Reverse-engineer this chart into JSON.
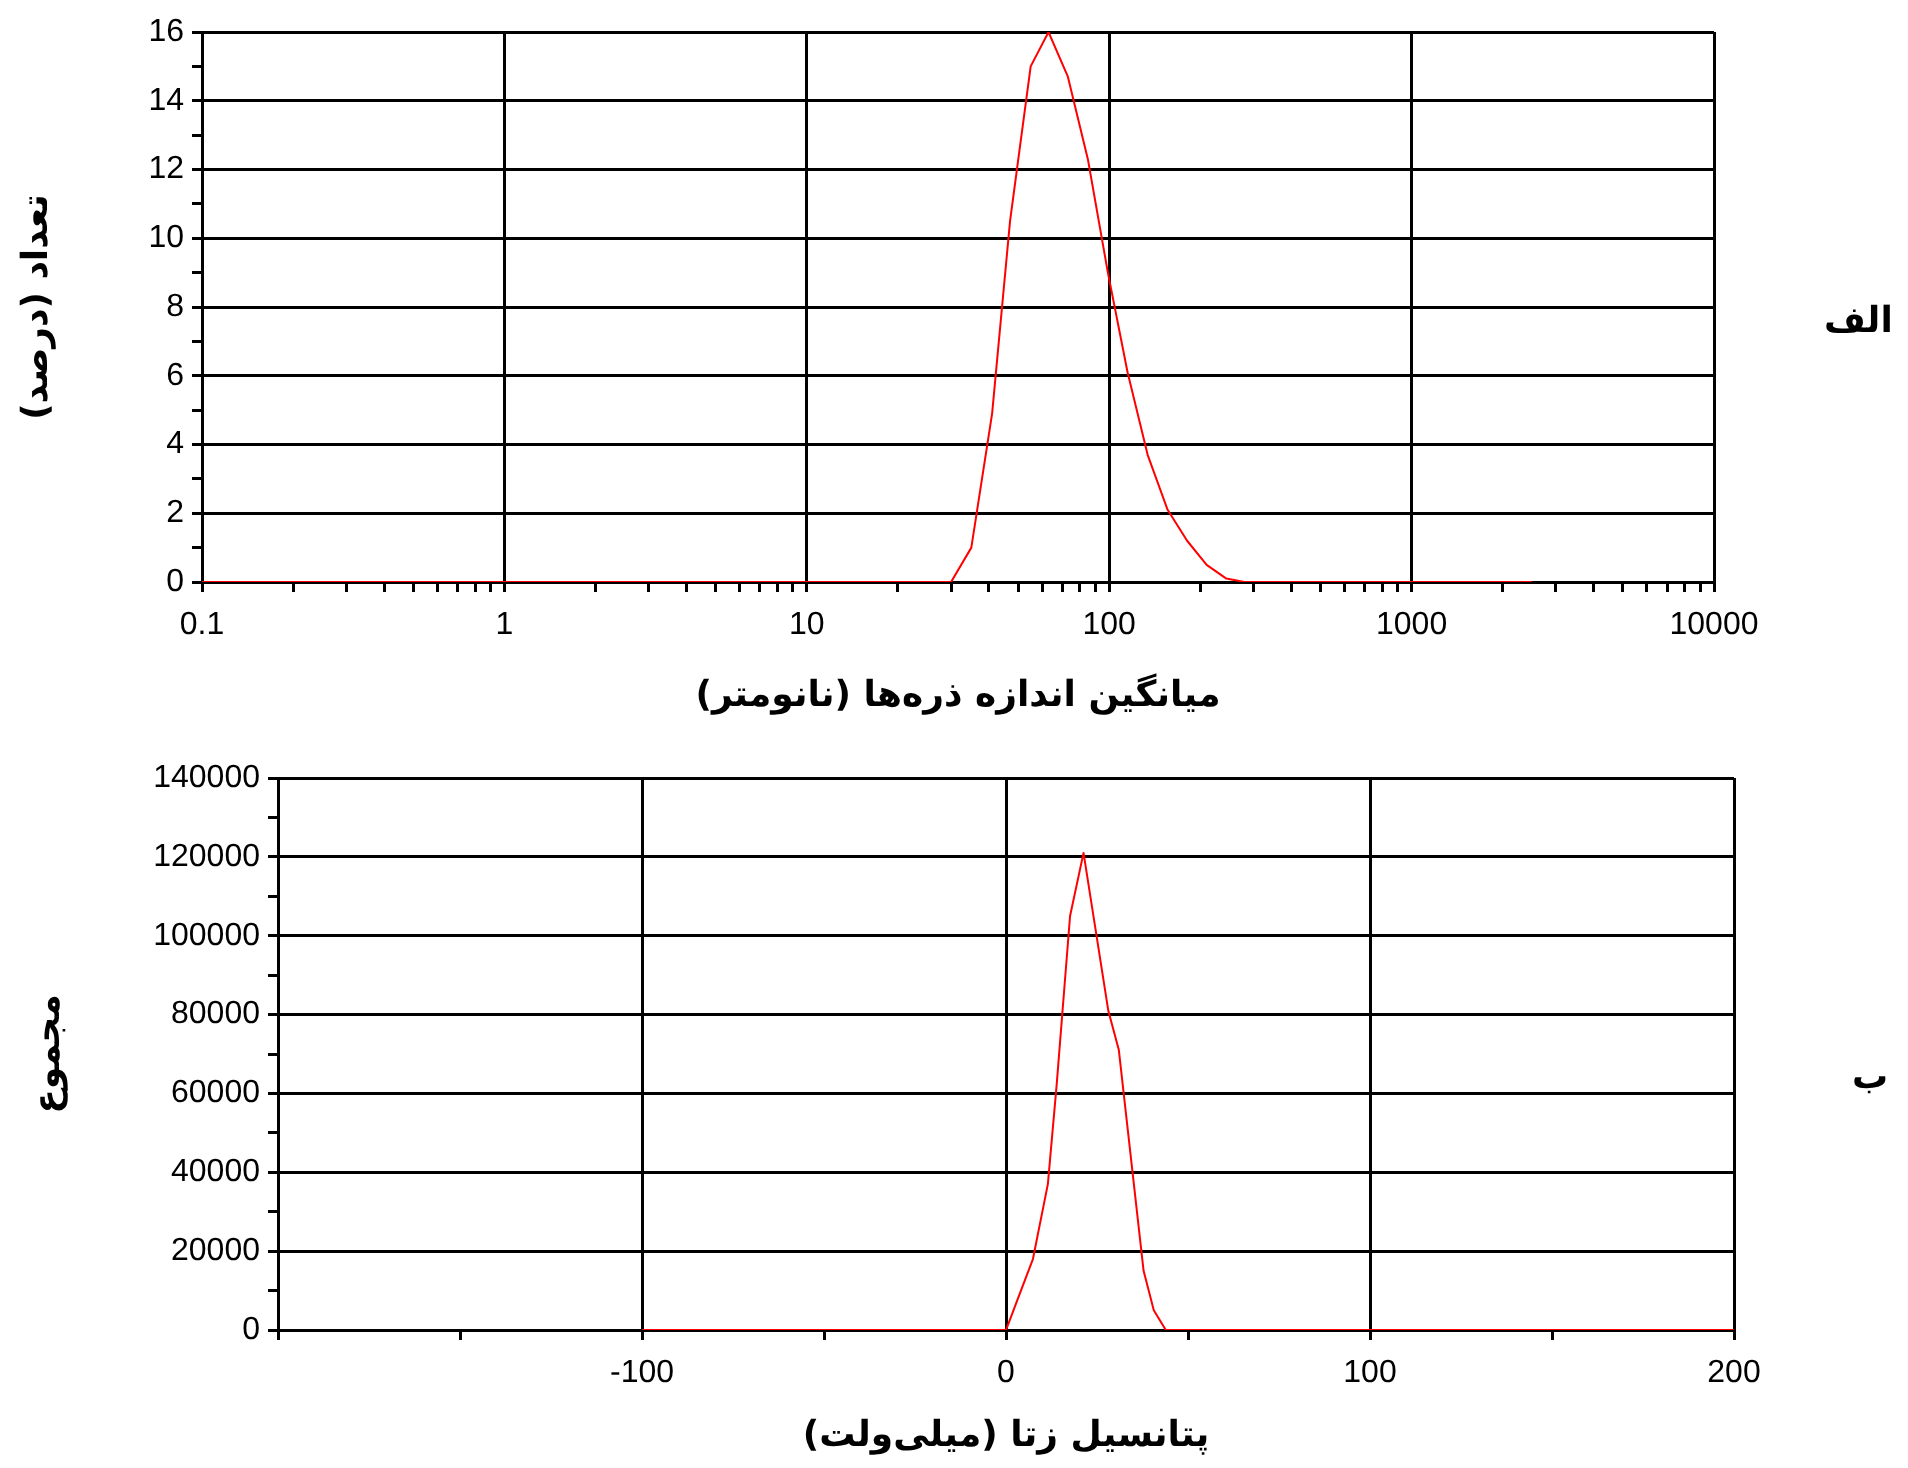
{
  "chart_data": [
    {
      "type": "line",
      "xlabel": "میانگین اندازه ذره‌ها (نانومتر)",
      "ylabel": "تعداد (درصد)",
      "annotations": [
        "الف"
      ],
      "log": "x",
      "x": [
        0.1,
        30,
        35,
        41,
        47,
        55,
        63,
        73,
        85,
        99,
        115,
        134,
        156,
        181,
        210,
        244,
        280,
        2500
      ],
      "values": [
        0,
        0,
        1,
        4.9,
        10.5,
        15,
        16,
        14.7,
        12.3,
        9,
        6.1,
        3.7,
        2.1,
        1.2,
        0.5,
        0.1,
        0,
        0
      ],
      "color": "#ff0000",
      "marker": "none",
      "xlim": [
        0.1,
        10000
      ],
      "ylim": [
        0,
        16
      ],
      "xticks": [
        0.1,
        {
          "value": 0.2,
          "label": null
        },
        {
          "value": 0.3,
          "label": null
        },
        {
          "value": 0.4,
          "label": null
        },
        {
          "value": 0.5,
          "label": null
        },
        {
          "value": 0.6,
          "label": null
        },
        {
          "value": 0.7,
          "label": null
        },
        {
          "value": 0.8,
          "label": null
        },
        {
          "value": 0.9,
          "label": null
        },
        1,
        {
          "value": 2,
          "label": null
        },
        {
          "value": 3,
          "label": null
        },
        {
          "value": 4,
          "label": null
        },
        {
          "value": 5,
          "label": null
        },
        {
          "value": 6,
          "label": null
        },
        {
          "value": 7,
          "label": null
        },
        {
          "value": 8,
          "label": null
        },
        {
          "value": 9,
          "label": null
        },
        10,
        {
          "value": 20,
          "label": null
        },
        {
          "value": 30,
          "label": null
        },
        {
          "value": 40,
          "label": null
        },
        {
          "value": 50,
          "label": null
        },
        {
          "value": 60,
          "label": null
        },
        {
          "value": 70,
          "label": null
        },
        {
          "value": 80,
          "label": null
        },
        {
          "value": 90,
          "label": null
        },
        100,
        {
          "value": 200,
          "label": null
        },
        {
          "value": 300,
          "label": null
        },
        {
          "value": 400,
          "label": null
        },
        {
          "value": 500,
          "label": null
        },
        {
          "value": 600,
          "label": null
        },
        {
          "value": 700,
          "label": null
        },
        {
          "value": 800,
          "label": null
        },
        {
          "value": 900,
          "label": null
        },
        1000,
        {
          "value": 2000,
          "label": null
        },
        {
          "value": 3000,
          "label": null
        },
        {
          "value": 4000,
          "label": null
        },
        {
          "value": 5000,
          "label": null
        },
        {
          "value": 6000,
          "label": null
        },
        {
          "value": 7000,
          "label": null
        },
        {
          "value": 8000,
          "label": null
        },
        {
          "value": 9000,
          "label": null
        },
        10000
      ],
      "yticks": [
        0,
        {
          "value": 1,
          "label": null
        },
        2,
        {
          "value": 3,
          "label": null
        },
        4,
        {
          "value": 5,
          "label": null
        },
        6,
        {
          "value": 7,
          "label": null
        },
        8,
        {
          "value": 9,
          "label": null
        },
        10,
        {
          "value": 11,
          "label": null
        },
        12,
        {
          "value": 13,
          "label": null
        },
        14,
        {
          "value": 15,
          "label": null
        },
        16
      ],
      "grid": true
    },
    {
      "type": "line",
      "xlabel": "پتانسیل زتا (میلی‌ولت)",
      "ylabel": "مجموع",
      "annotations": [
        "ب"
      ],
      "x": [
        -100,
        0,
        7.4,
        11.5,
        13.9,
        17.6,
        21.3,
        28.1,
        31,
        37.8,
        40.6,
        43.9,
        200
      ],
      "values": [
        0,
        0,
        18000,
        37000,
        62000,
        105000,
        121000,
        81000,
        71000,
        15000,
        5000,
        0,
        0
      ],
      "color": "#ff0000",
      "marker": "none",
      "xlim": [
        -200,
        200
      ],
      "ylim": [
        0,
        140000
      ],
      "xticks": [
        {
          "value": -200,
          "label": null
        },
        {
          "value": -150,
          "label": null
        },
        -100,
        {
          "value": -50,
          "label": null
        },
        0,
        {
          "value": 50,
          "label": null
        },
        100,
        {
          "value": 150,
          "label": null
        },
        200
      ],
      "yticks": [
        0,
        {
          "value": 10000,
          "label": null
        },
        20000,
        {
          "value": 30000,
          "label": null
        },
        40000,
        {
          "value": 50000,
          "label": null
        },
        60000,
        {
          "value": 70000,
          "label": null
        },
        80000,
        {
          "value": 90000,
          "label": null
        },
        100000,
        {
          "value": 110000,
          "label": null
        },
        120000,
        {
          "value": 130000,
          "label": null
        },
        140000
      ],
      "grid": true
    }
  ]
}
